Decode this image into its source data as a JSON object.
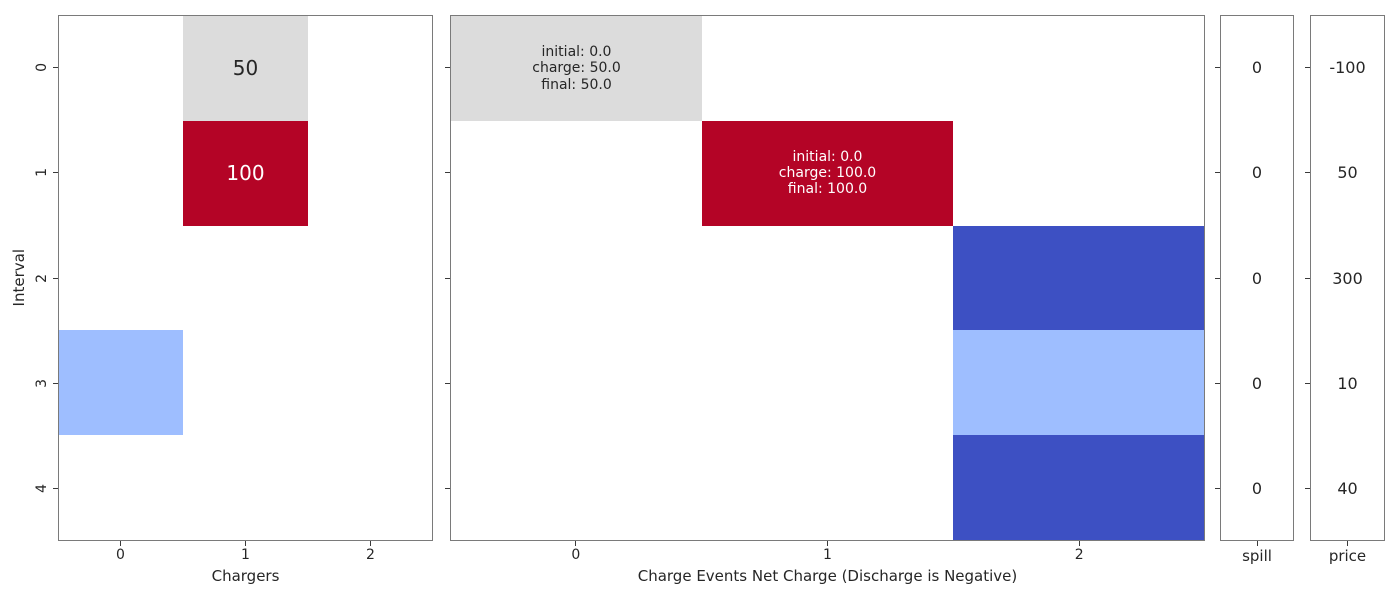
{
  "figure": {
    "background": "#ffffff",
    "spine_color": "#7a7a7a",
    "text_color": "#262626",
    "tick_color": "#3a3a3a"
  },
  "chart_data": [
    {
      "type": "heatmap",
      "name": "chargers",
      "title": "",
      "xlabel": "Chargers",
      "ylabel": "Interval",
      "x_ticks": [
        "0",
        "1",
        "2"
      ],
      "y_ticks": [
        "0",
        "1",
        "2",
        "3",
        "4"
      ],
      "rows": 5,
      "cols": 3,
      "cells": [
        {
          "row": 0,
          "col": 1,
          "color": "#dcdcdc",
          "label": "50",
          "text_color": "#262626"
        },
        {
          "row": 1,
          "col": 1,
          "color": "#b40426",
          "label": "100",
          "text_color": "#ffffff"
        },
        {
          "row": 3,
          "col": 0,
          "color": "#9ebeff",
          "label": "",
          "text_color": "#262626"
        }
      ]
    },
    {
      "type": "heatmap",
      "name": "charge-events",
      "title": "",
      "xlabel": "Charge Events Net Charge (Discharge is Negative)",
      "ylabel": "",
      "x_ticks": [
        "0",
        "1",
        "2"
      ],
      "y_ticks": [
        "",
        "",
        "",
        "",
        ""
      ],
      "rows": 5,
      "cols": 3,
      "cells": [
        {
          "row": 0,
          "col": 0,
          "color": "#dcdcdc",
          "label": "initial: 0.0\ncharge: 50.0\nfinal: 50.0",
          "text_color": "#262626"
        },
        {
          "row": 1,
          "col": 1,
          "color": "#b40426",
          "label": "initial: 0.0\ncharge: 100.0\nfinal: 100.0",
          "text_color": "#ffffff"
        },
        {
          "row": 2,
          "col": 2,
          "color": "#3d50c3",
          "label": "",
          "text_color": "#ffffff"
        },
        {
          "row": 3,
          "col": 2,
          "color": "#9ebeff",
          "label": "",
          "text_color": "#262626"
        },
        {
          "row": 4,
          "col": 2,
          "color": "#3d50c3",
          "label": "",
          "text_color": "#ffffff"
        }
      ]
    },
    {
      "type": "column",
      "name": "spill",
      "xlabel": "spill",
      "values": [
        "0",
        "0",
        "0",
        "0",
        "0"
      ]
    },
    {
      "type": "column",
      "name": "price",
      "xlabel": "price",
      "values": [
        "-100",
        "50",
        "300",
        "10",
        "40"
      ]
    }
  ]
}
